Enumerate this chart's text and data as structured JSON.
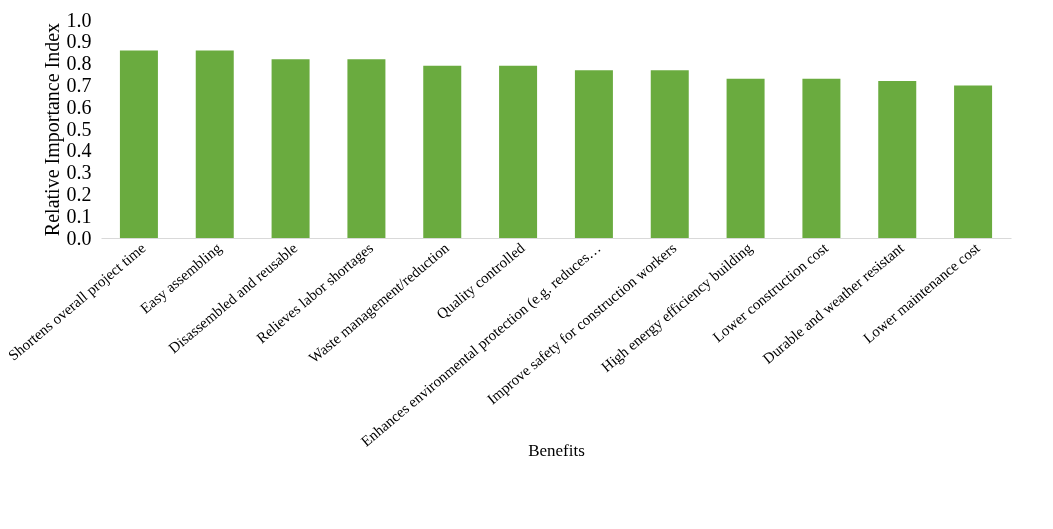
{
  "chart_data": {
    "type": "bar",
    "categories": [
      "Shortens overall project time",
      "Easy assembling",
      "Disassembled and reusable",
      "Relieves labor shortages",
      "Waste management/reduction",
      "Quality controlled",
      "Enhances environmental protection (e.g. reduces…",
      "Improve safety for construction workers",
      "High energy efficiency building",
      "Lower construction cost",
      "Durable and weather resistant",
      "Lower maintenance cost"
    ],
    "values": [
      0.86,
      0.86,
      0.82,
      0.82,
      0.79,
      0.79,
      0.77,
      0.77,
      0.73,
      0.73,
      0.72,
      0.7
    ],
    "color": "#6aab3f",
    "xlabel": "Benefits",
    "ylabel": "Relative Importance Index",
    "ylim": [
      0,
      1
    ],
    "yticks": [
      {
        "value": 0,
        "label": "0.0"
      },
      0.1,
      0.2,
      0.3,
      0.4,
      0.5,
      0.6,
      0.7,
      0.8,
      0.9,
      {
        "value": 1,
        "label": "1.0"
      }
    ],
    "grid": false
  }
}
